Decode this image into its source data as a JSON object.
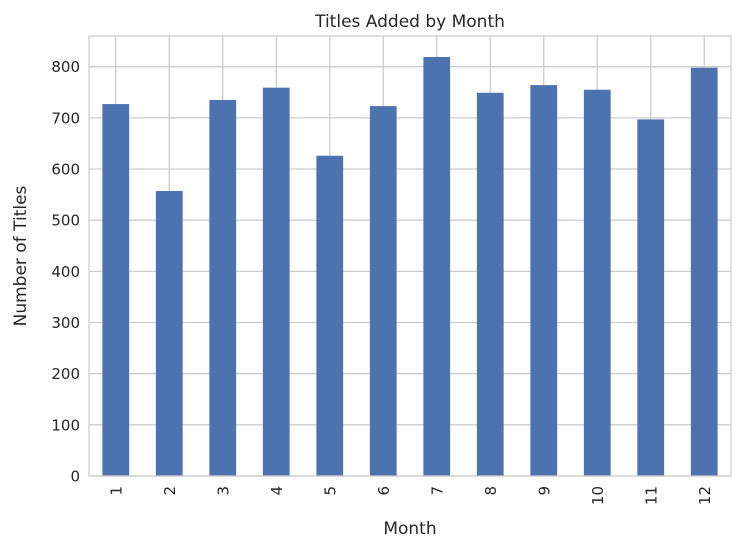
{
  "chart_data": {
    "type": "bar",
    "title": "Titles Added by Month",
    "xlabel": "Month",
    "ylabel": "Number of Titles",
    "categories": [
      "1",
      "2",
      "3",
      "4",
      "5",
      "6",
      "7",
      "8",
      "9",
      "10",
      "11",
      "12"
    ],
    "values": [
      727,
      557,
      735,
      759,
      626,
      723,
      819,
      749,
      764,
      755,
      697,
      798
    ],
    "ylim": [
      0,
      860
    ],
    "yticks": [
      0,
      100,
      200,
      300,
      400,
      500,
      600,
      700,
      800
    ],
    "grid": true,
    "legend": "none",
    "bar_color": "#4c72b0",
    "grid_color": "#cccccc",
    "x_tick_rotation": "vertical"
  }
}
